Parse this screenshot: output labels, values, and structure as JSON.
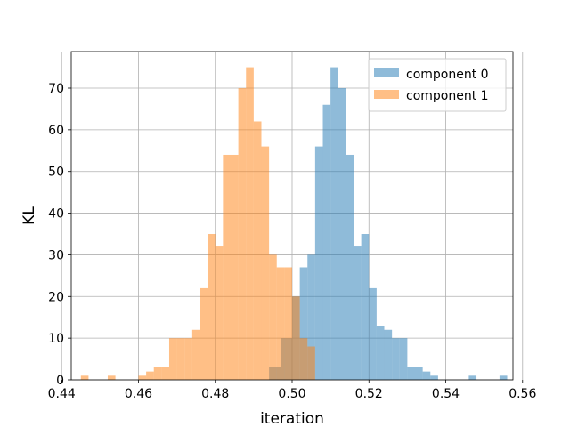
{
  "chart_data": {
    "type": "histogram",
    "xlabel": "iteration",
    "ylabel": "KL",
    "xlim": [
      0.4425,
      0.5575
    ],
    "ylim": [
      0,
      78.75
    ],
    "xticks": [
      0.44,
      0.46,
      0.48,
      0.5,
      0.52,
      0.54,
      0.56
    ],
    "yticks": [
      0,
      10,
      20,
      30,
      40,
      50,
      60,
      70
    ],
    "grid": true,
    "legend_position": "top-right",
    "series": [
      {
        "name": "component 0",
        "color": "#1f77b4",
        "opacity": 0.5,
        "bins": [
          {
            "x0": 0.494,
            "x1": 0.497,
            "count": 3
          },
          {
            "x0": 0.497,
            "x1": 0.5,
            "count": 10
          },
          {
            "x0": 0.5,
            "x1": 0.502,
            "count": 20
          },
          {
            "x0": 0.502,
            "x1": 0.504,
            "count": 27
          },
          {
            "x0": 0.504,
            "x1": 0.506,
            "count": 30
          },
          {
            "x0": 0.506,
            "x1": 0.508,
            "count": 56
          },
          {
            "x0": 0.508,
            "x1": 0.51,
            "count": 66
          },
          {
            "x0": 0.51,
            "x1": 0.512,
            "count": 75
          },
          {
            "x0": 0.512,
            "x1": 0.514,
            "count": 70
          },
          {
            "x0": 0.514,
            "x1": 0.516,
            "count": 54
          },
          {
            "x0": 0.516,
            "x1": 0.518,
            "count": 32
          },
          {
            "x0": 0.518,
            "x1": 0.52,
            "count": 35
          },
          {
            "x0": 0.52,
            "x1": 0.522,
            "count": 22
          },
          {
            "x0": 0.522,
            "x1": 0.524,
            "count": 13
          },
          {
            "x0": 0.524,
            "x1": 0.526,
            "count": 12
          },
          {
            "x0": 0.526,
            "x1": 0.528,
            "count": 10
          },
          {
            "x0": 0.528,
            "x1": 0.53,
            "count": 10
          },
          {
            "x0": 0.53,
            "x1": 0.532,
            "count": 3
          },
          {
            "x0": 0.532,
            "x1": 0.534,
            "count": 3
          },
          {
            "x0": 0.534,
            "x1": 0.536,
            "count": 2
          },
          {
            "x0": 0.536,
            "x1": 0.538,
            "count": 1
          },
          {
            "x0": 0.546,
            "x1": 0.548,
            "count": 1
          },
          {
            "x0": 0.554,
            "x1": 0.556,
            "count": 1
          }
        ]
      },
      {
        "name": "component 1",
        "color": "#ff7f0e",
        "opacity": 0.5,
        "bins": [
          {
            "x0": 0.445,
            "x1": 0.447,
            "count": 1
          },
          {
            "x0": 0.452,
            "x1": 0.454,
            "count": 1
          },
          {
            "x0": 0.46,
            "x1": 0.462,
            "count": 1
          },
          {
            "x0": 0.462,
            "x1": 0.464,
            "count": 2
          },
          {
            "x0": 0.464,
            "x1": 0.466,
            "count": 3
          },
          {
            "x0": 0.466,
            "x1": 0.468,
            "count": 3
          },
          {
            "x0": 0.468,
            "x1": 0.47,
            "count": 10
          },
          {
            "x0": 0.47,
            "x1": 0.472,
            "count": 10
          },
          {
            "x0": 0.472,
            "x1": 0.474,
            "count": 10
          },
          {
            "x0": 0.474,
            "x1": 0.476,
            "count": 12
          },
          {
            "x0": 0.476,
            "x1": 0.478,
            "count": 22
          },
          {
            "x0": 0.478,
            "x1": 0.48,
            "count": 35
          },
          {
            "x0": 0.48,
            "x1": 0.482,
            "count": 32
          },
          {
            "x0": 0.482,
            "x1": 0.484,
            "count": 54
          },
          {
            "x0": 0.484,
            "x1": 0.486,
            "count": 54
          },
          {
            "x0": 0.486,
            "x1": 0.488,
            "count": 70
          },
          {
            "x0": 0.488,
            "x1": 0.49,
            "count": 75
          },
          {
            "x0": 0.49,
            "x1": 0.492,
            "count": 62
          },
          {
            "x0": 0.492,
            "x1": 0.494,
            "count": 56
          },
          {
            "x0": 0.494,
            "x1": 0.496,
            "count": 30
          },
          {
            "x0": 0.496,
            "x1": 0.498,
            "count": 27
          },
          {
            "x0": 0.498,
            "x1": 0.5,
            "count": 27
          },
          {
            "x0": 0.5,
            "x1": 0.502,
            "count": 20
          },
          {
            "x0": 0.502,
            "x1": 0.504,
            "count": 10
          },
          {
            "x0": 0.504,
            "x1": 0.506,
            "count": 8
          }
        ]
      }
    ]
  }
}
